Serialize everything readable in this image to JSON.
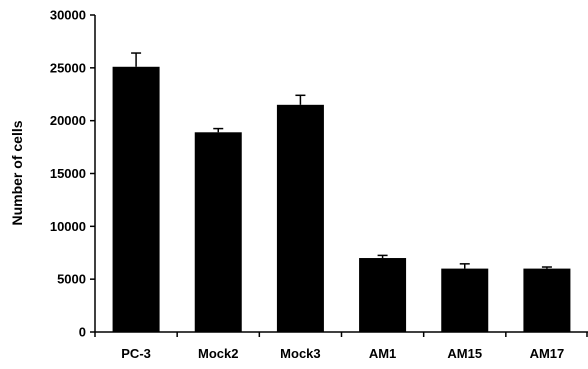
{
  "chart_data": {
    "type": "bar",
    "title": "",
    "xlabel": "",
    "ylabel": "Number of cells",
    "categories": [
      "PC-3",
      "Mock2",
      "Mock3",
      "AM1",
      "AM15",
      "AM17"
    ],
    "values": [
      25100,
      18900,
      21500,
      7000,
      6000,
      6000
    ],
    "errors": [
      1300,
      350,
      900,
      250,
      450,
      150
    ],
    "ylim": [
      0,
      30000
    ],
    "yticks": [
      0,
      5000,
      10000,
      15000,
      20000,
      25000,
      30000
    ],
    "grid": false,
    "legend": "none",
    "bar_color": "#000000",
    "axis_color": "#000000"
  }
}
